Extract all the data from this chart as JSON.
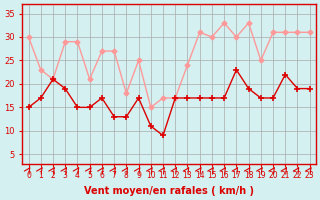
{
  "x": [
    0,
    1,
    2,
    3,
    4,
    5,
    6,
    7,
    8,
    9,
    10,
    11,
    12,
    13,
    14,
    15,
    16,
    17,
    18,
    19,
    20,
    21,
    22,
    23
  ],
  "wind_avg": [
    15,
    17,
    21,
    19,
    15,
    15,
    17,
    13,
    13,
    17,
    11,
    9,
    17,
    17,
    17,
    17,
    17,
    23,
    19,
    17,
    17,
    22,
    19,
    19
  ],
  "wind_gust": [
    30,
    23,
    21,
    29,
    29,
    21,
    27,
    27,
    18,
    25,
    15,
    17,
    17,
    24,
    31,
    30,
    33,
    30,
    33,
    25,
    31,
    31,
    31,
    31
  ],
  "avg_color": "#dd0000",
  "gust_color": "#ff9999",
  "bg_color": "#d4f0f0",
  "grid_color": "#aaaaaa",
  "xlabel": "Vent moyen/en rafales ( km/h )",
  "xlabel_color": "#dd0000",
  "tick_color": "#dd0000",
  "ylim": [
    3,
    37
  ],
  "yticks": [
    5,
    10,
    15,
    20,
    25,
    30,
    35
  ],
  "xlim": [
    -0.5,
    23.5
  ],
  "title_color": "#dd0000",
  "spine_color": "#dd0000"
}
